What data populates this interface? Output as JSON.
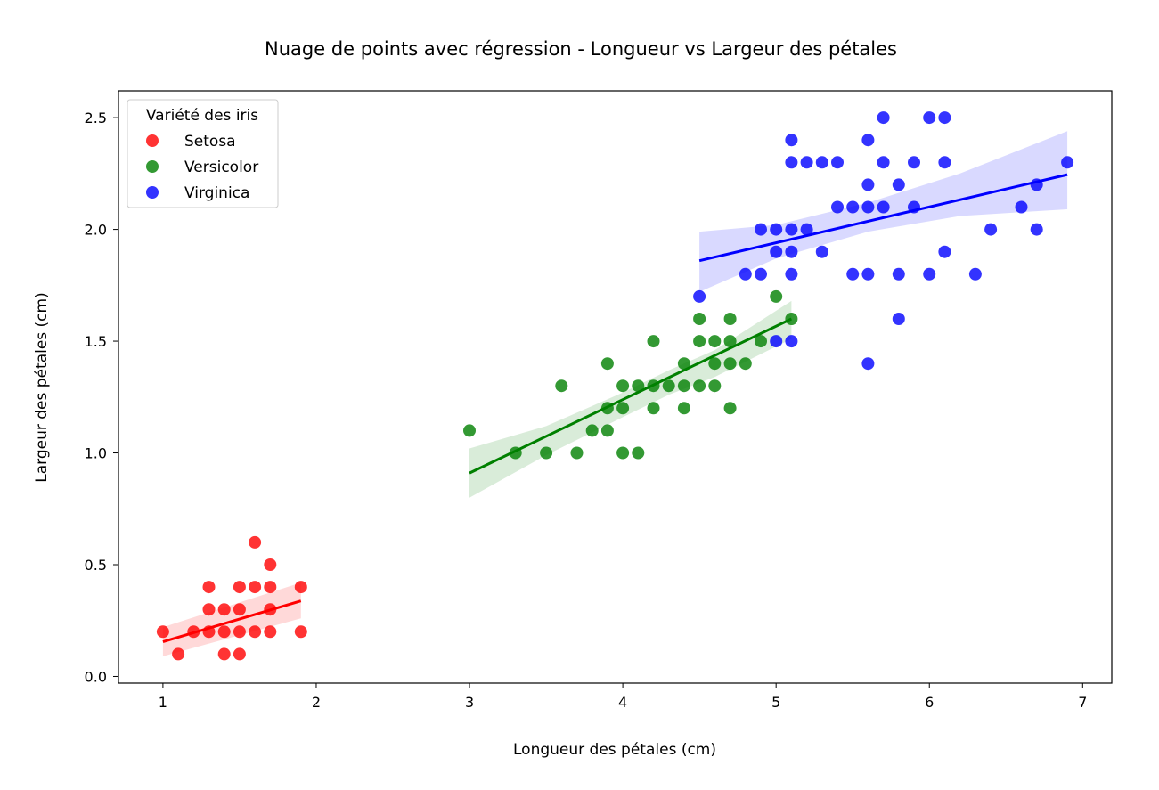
{
  "chart_data": {
    "type": "scatter",
    "title": "Nuage de points avec régression - Longueur vs Largeur des pétales",
    "xlabel": "Longueur des pétales (cm)",
    "ylabel": "Largeur des pétales (cm)",
    "xlim": [
      0.71,
      7.19
    ],
    "ylim": [
      -0.03,
      2.62
    ],
    "xticks": [
      1,
      2,
      3,
      4,
      5,
      6,
      7
    ],
    "yticks": [
      0.0,
      0.5,
      1.0,
      1.5,
      2.0,
      2.5
    ],
    "xtick_labels": [
      "1",
      "2",
      "3",
      "4",
      "5",
      "6",
      "7"
    ],
    "ytick_labels": [
      "0.0",
      "0.5",
      "1.0",
      "1.5",
      "2.0",
      "2.5"
    ],
    "grid": false,
    "legend": {
      "title": "Variété des iris",
      "position": "top-left"
    },
    "series": [
      {
        "name": "Setosa",
        "color": "#ff0000",
        "points": [
          [
            1.0,
            0.2
          ],
          [
            1.1,
            0.1
          ],
          [
            1.2,
            0.2
          ],
          [
            1.3,
            0.2
          ],
          [
            1.3,
            0.3
          ],
          [
            1.3,
            0.4
          ],
          [
            1.4,
            0.1
          ],
          [
            1.4,
            0.2
          ],
          [
            1.4,
            0.3
          ],
          [
            1.5,
            0.1
          ],
          [
            1.5,
            0.2
          ],
          [
            1.5,
            0.3
          ],
          [
            1.5,
            0.4
          ],
          [
            1.6,
            0.2
          ],
          [
            1.6,
            0.4
          ],
          [
            1.6,
            0.6
          ],
          [
            1.7,
            0.2
          ],
          [
            1.7,
            0.3
          ],
          [
            1.7,
            0.4
          ],
          [
            1.7,
            0.5
          ],
          [
            1.9,
            0.2
          ],
          [
            1.9,
            0.4
          ]
        ],
        "regression": {
          "x0": 1.0,
          "y0": 0.155,
          "x1": 1.9,
          "y1": 0.338
        },
        "ci": {
          "x": [
            1.0,
            1.9
          ],
          "lower": [
            0.09,
            0.26
          ],
          "upper": [
            0.22,
            0.42
          ]
        }
      },
      {
        "name": "Versicolor",
        "color": "#008000",
        "points": [
          [
            3.0,
            1.1
          ],
          [
            3.3,
            1.0
          ],
          [
            3.5,
            1.0
          ],
          [
            3.6,
            1.3
          ],
          [
            3.7,
            1.0
          ],
          [
            3.8,
            1.1
          ],
          [
            3.9,
            1.1
          ],
          [
            3.9,
            1.2
          ],
          [
            3.9,
            1.4
          ],
          [
            4.0,
            1.0
          ],
          [
            4.0,
            1.2
          ],
          [
            4.0,
            1.3
          ],
          [
            4.1,
            1.0
          ],
          [
            4.1,
            1.3
          ],
          [
            4.2,
            1.2
          ],
          [
            4.2,
            1.3
          ],
          [
            4.2,
            1.5
          ],
          [
            4.3,
            1.3
          ],
          [
            4.4,
            1.2
          ],
          [
            4.4,
            1.3
          ],
          [
            4.4,
            1.4
          ],
          [
            4.5,
            1.3
          ],
          [
            4.5,
            1.5
          ],
          [
            4.5,
            1.6
          ],
          [
            4.6,
            1.3
          ],
          [
            4.6,
            1.4
          ],
          [
            4.6,
            1.5
          ],
          [
            4.7,
            1.2
          ],
          [
            4.7,
            1.4
          ],
          [
            4.7,
            1.5
          ],
          [
            4.7,
            1.6
          ],
          [
            4.8,
            1.4
          ],
          [
            4.9,
            1.5
          ],
          [
            5.0,
            1.7
          ],
          [
            5.1,
            1.6
          ]
        ],
        "regression": {
          "x0": 3.0,
          "y0": 0.91,
          "x1": 5.1,
          "y1": 1.6
        },
        "ci": {
          "x": [
            3.0,
            3.5,
            4.0,
            4.3,
            4.6,
            5.1
          ],
          "lower": [
            0.8,
            0.99,
            1.16,
            1.26,
            1.34,
            1.51
          ],
          "upper": [
            1.02,
            1.12,
            1.27,
            1.37,
            1.46,
            1.68
          ]
        }
      },
      {
        "name": "Virginica",
        "color": "#0000ff",
        "points": [
          [
            4.5,
            1.7
          ],
          [
            4.8,
            1.8
          ],
          [
            4.9,
            1.8
          ],
          [
            4.9,
            2.0
          ],
          [
            5.0,
            1.5
          ],
          [
            5.0,
            1.9
          ],
          [
            5.0,
            2.0
          ],
          [
            5.1,
            1.5
          ],
          [
            5.1,
            1.8
          ],
          [
            5.1,
            1.9
          ],
          [
            5.1,
            2.0
          ],
          [
            5.1,
            2.3
          ],
          [
            5.1,
            2.4
          ],
          [
            5.2,
            2.0
          ],
          [
            5.2,
            2.3
          ],
          [
            5.3,
            1.9
          ],
          [
            5.3,
            2.3
          ],
          [
            5.4,
            2.1
          ],
          [
            5.4,
            2.3
          ],
          [
            5.5,
            1.8
          ],
          [
            5.5,
            2.1
          ],
          [
            5.6,
            1.4
          ],
          [
            5.6,
            1.8
          ],
          [
            5.6,
            2.1
          ],
          [
            5.6,
            2.2
          ],
          [
            5.6,
            2.4
          ],
          [
            5.7,
            2.1
          ],
          [
            5.7,
            2.3
          ],
          [
            5.7,
            2.5
          ],
          [
            5.8,
            1.6
          ],
          [
            5.8,
            1.8
          ],
          [
            5.8,
            2.2
          ],
          [
            5.9,
            2.1
          ],
          [
            5.9,
            2.3
          ],
          [
            6.0,
            1.8
          ],
          [
            6.0,
            2.5
          ],
          [
            6.1,
            1.9
          ],
          [
            6.1,
            2.3
          ],
          [
            6.1,
            2.5
          ],
          [
            6.3,
            1.8
          ],
          [
            6.4,
            2.0
          ],
          [
            6.6,
            2.1
          ],
          [
            6.7,
            2.0
          ],
          [
            6.7,
            2.2
          ],
          [
            6.9,
            2.3
          ]
        ],
        "regression": {
          "x0": 4.5,
          "y0": 1.86,
          "x1": 6.9,
          "y1": 2.245
        },
        "ci": {
          "x": [
            4.5,
            5.0,
            5.6,
            6.2,
            6.9
          ],
          "lower": [
            1.72,
            1.87,
            1.99,
            2.06,
            2.09
          ],
          "upper": [
            1.99,
            2.02,
            2.12,
            2.25,
            2.44
          ]
        }
      }
    ]
  }
}
